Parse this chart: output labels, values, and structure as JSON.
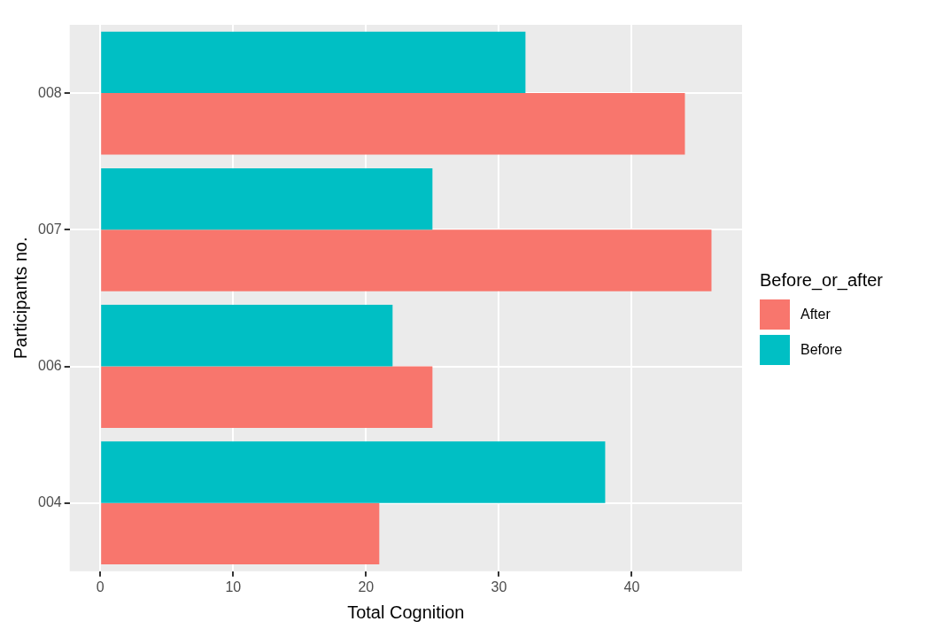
{
  "chart_data": {
    "type": "bar",
    "orientation": "horizontal",
    "xlabel": "Total Cognition",
    "ylabel": "Participants no.",
    "legend_title": "Before_or_after",
    "categories": [
      "008",
      "007",
      "006",
      "004"
    ],
    "series": [
      {
        "name": "After",
        "color": "#f8766d",
        "values": [
          44,
          46,
          25,
          21
        ]
      },
      {
        "name": "Before",
        "color": "#00bfc4",
        "values": [
          32,
          25,
          22,
          38
        ]
      }
    ],
    "xlim": [
      -2.3,
      48.3
    ],
    "xticks": [
      0,
      10,
      20,
      30,
      40
    ],
    "grid": true,
    "legend": "right"
  }
}
